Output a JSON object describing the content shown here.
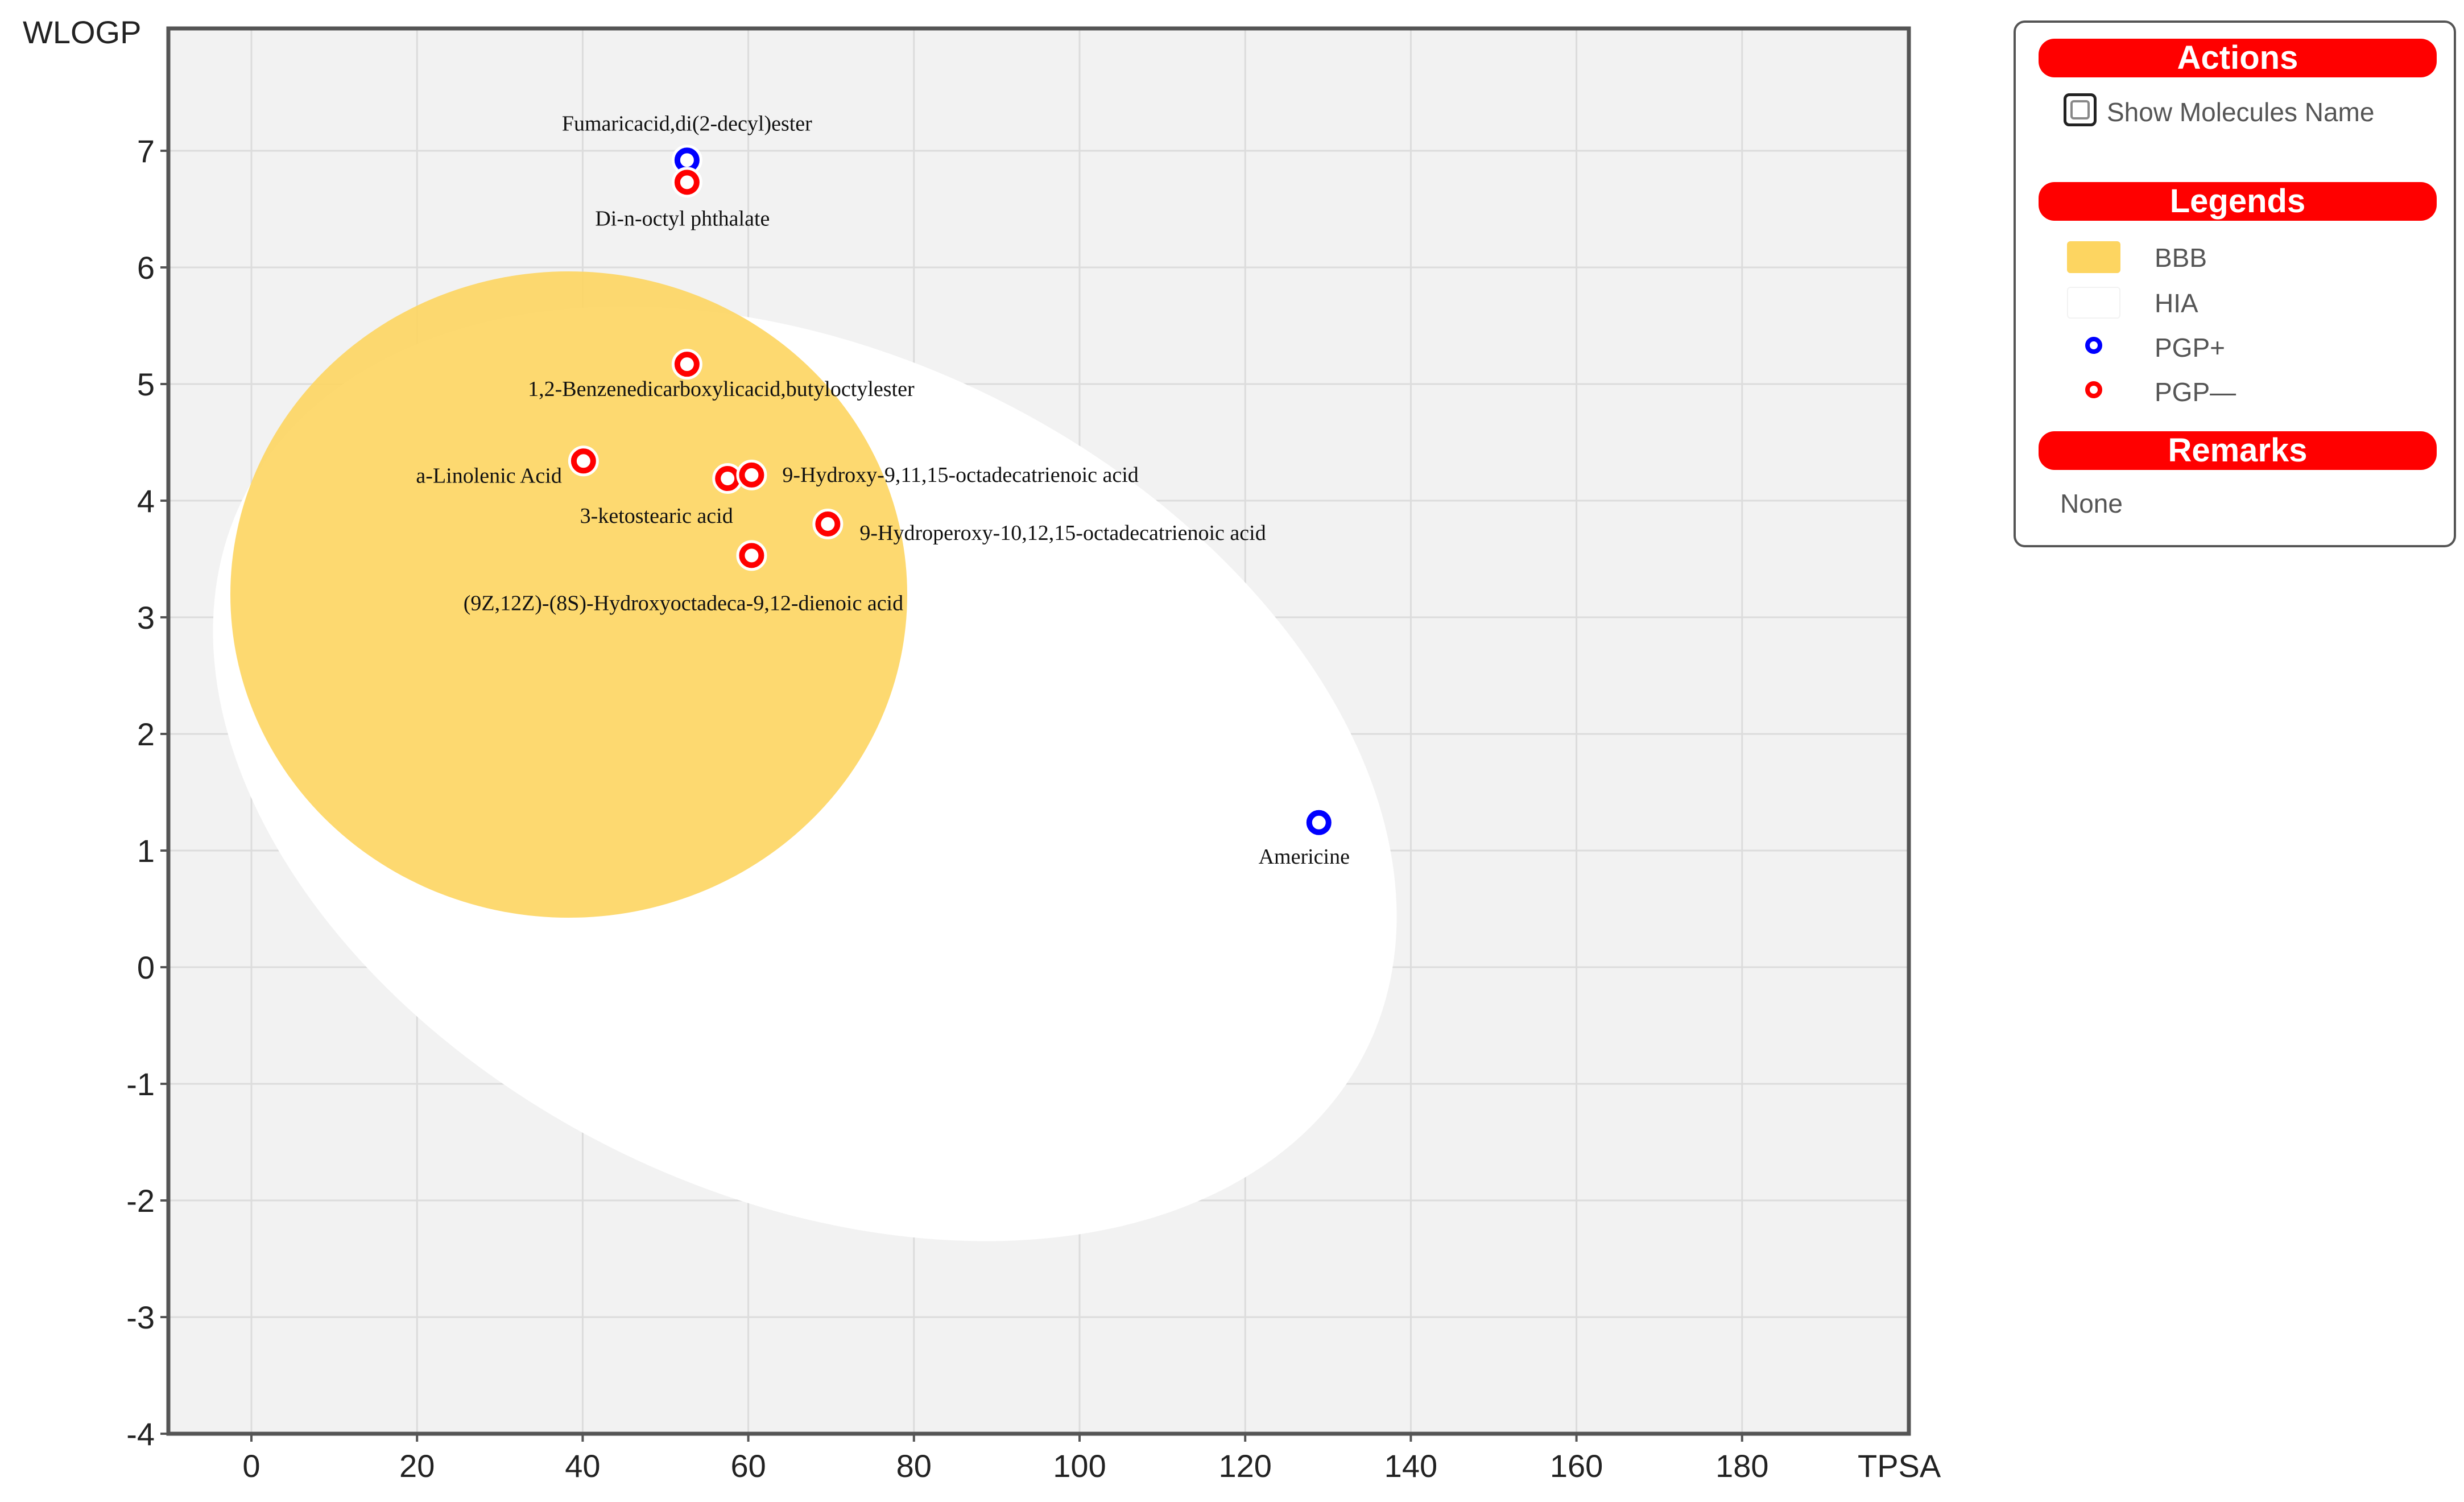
{
  "chart_data": {
    "type": "scatter",
    "title": "",
    "xlabel": "TPSA",
    "ylabel": "WLOGP",
    "xlim": [
      -10,
      200
    ],
    "ylim": [
      -4,
      8
    ],
    "x_ticks": [
      0,
      20,
      40,
      60,
      80,
      100,
      120,
      140,
      160,
      180
    ],
    "y_ticks": [
      -4,
      -3,
      -2,
      -1,
      0,
      1,
      2,
      3,
      4,
      5,
      6,
      7
    ],
    "grid": true,
    "regions": [
      {
        "name": "HIA",
        "shape": "ellipse",
        "color": "#ffffff"
      },
      {
        "name": "BBB",
        "shape": "ellipse",
        "color": "#fdd561"
      }
    ],
    "points": [
      {
        "label": "Fumaricacid,di(2-decyl)ester",
        "x": 52.6,
        "y": 6.92,
        "class": "PGP+"
      },
      {
        "label": "Di-n-octyl phthalate",
        "x": 52.6,
        "y": 6.73,
        "class": "PGP—"
      },
      {
        "label": "1,2-Benzenedicarboxylicacid,butyloctylester",
        "x": 52.6,
        "y": 5.17,
        "class": "PGP—"
      },
      {
        "label": "a-Linolenic Acid",
        "x": 40.1,
        "y": 4.34,
        "class": "PGP—"
      },
      {
        "label": "3-ketostearic acid",
        "x": 57.5,
        "y": 4.19,
        "class": "PGP—"
      },
      {
        "label": "9-Hydroxy-9,11,15-octadecatrienoic acid",
        "x": 60.4,
        "y": 4.22,
        "class": "PGP—"
      },
      {
        "label": "9-Hydroperoxy-10,12,15-octadecatrienoic acid",
        "x": 69.6,
        "y": 3.8,
        "class": "PGP—"
      },
      {
        "label": "(9Z,12Z)-(8S)-Hydroxyoctadeca-9,12-dienoic acid",
        "x": 60.4,
        "y": 3.53,
        "class": "PGP—"
      },
      {
        "label": "Americine",
        "x": 128.9,
        "y": 1.24,
        "class": "PGP+"
      }
    ]
  },
  "colors": {
    "pgp_plus": "#0000ff",
    "pgp_minus": "#ff0000",
    "bbb": "#fdd561",
    "hia": "#ffffff",
    "plot_bg": "#f2f2f2",
    "header": "#ff0000"
  },
  "panel": {
    "actions_title": "Actions",
    "show_names_label": "Show Molecules Name",
    "legends_title": "Legends",
    "legend_items": [
      {
        "label": "BBB",
        "icon": "yellow-swatch"
      },
      {
        "label": "HIA",
        "icon": "white-swatch"
      },
      {
        "label": "PGP+",
        "icon": "blue-circle-icon"
      },
      {
        "label": "PGP—",
        "icon": "red-circle-icon"
      }
    ],
    "remarks_title": "Remarks",
    "remarks_text": "None"
  }
}
